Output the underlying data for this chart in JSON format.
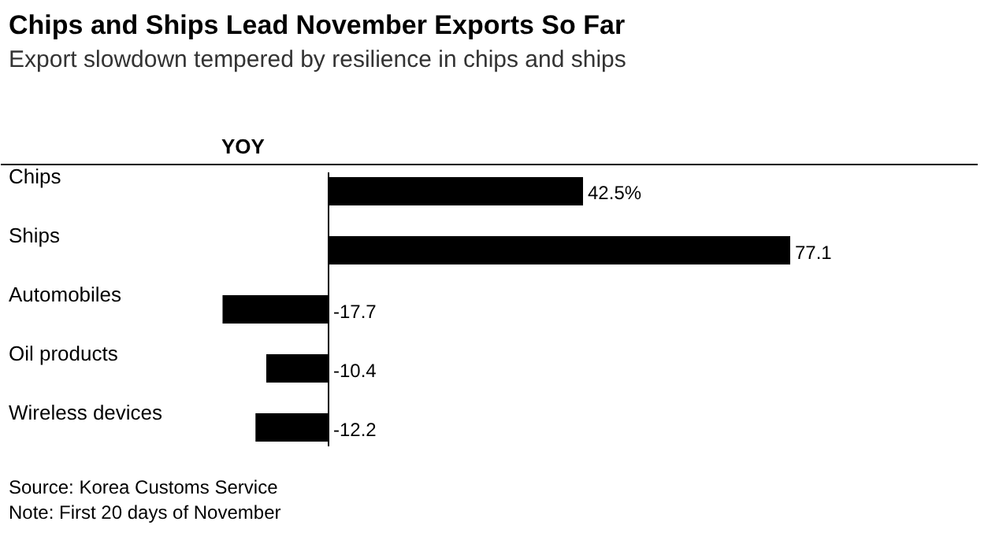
{
  "chart_data": {
    "type": "bar",
    "orientation": "horizontal",
    "title": "Chips and Ships Lead November Exports So Far",
    "subtitle": "Export slowdown tempered by resilience in chips and ships",
    "categories": [
      "Chips",
      "Ships",
      "Automobiles",
      "Oil products",
      "Wireless devices"
    ],
    "values": [
      42.5,
      77.1,
      -17.7,
      -10.4,
      -12.2
    ],
    "value_labels": [
      "42.5%",
      "77.1",
      "-17.7",
      "-10.4",
      "-12.2"
    ],
    "color": "#000000",
    "ref_lines": [
      {
        "axis": "x",
        "value": 0,
        "color": "#000000"
      }
    ],
    "annotations": [
      "YOY",
      "Source: Korea Customs Service",
      "Note: First 20 days of November"
    ]
  }
}
